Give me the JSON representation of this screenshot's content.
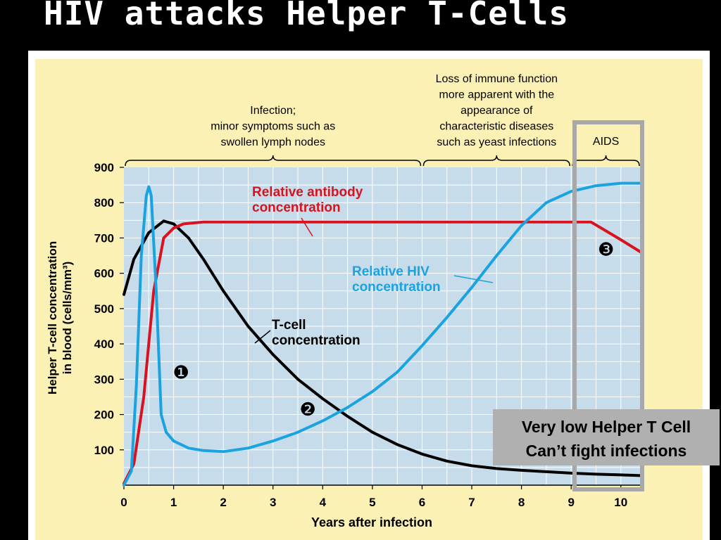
{
  "slide": {
    "title": "HIV attacks Helper T-Cells"
  },
  "callout": {
    "line1": "Very low Helper T Cell",
    "line2": "Can’t fight infections"
  },
  "chart_data": {
    "type": "line",
    "xlabel": "Years after infection",
    "ylabel_line1": "Helper T-cell concentration",
    "ylabel_line2": "in blood (cells/mm³)",
    "xlim": [
      0,
      10.4
    ],
    "ylim": [
      0,
      900
    ],
    "x_ticks": [
      0,
      1,
      2,
      3,
      4,
      5,
      6,
      7,
      8,
      9,
      10
    ],
    "y_ticks": [
      100,
      200,
      300,
      400,
      500,
      600,
      700,
      800,
      900
    ],
    "grid": true,
    "stages": [
      {
        "label_lines": [
          "Infection;",
          "minor symptoms such as",
          "swollen lymph nodes"
        ],
        "x_range": [
          0,
          6
        ]
      },
      {
        "label_lines": [
          "Loss of immune function",
          "more apparent with the",
          "appearance of",
          "characteristic diseases",
          "such as yeast infections"
        ],
        "x_range": [
          6,
          9
        ]
      },
      {
        "label_lines": [
          "AIDS"
        ],
        "x_range": [
          9,
          10.4
        ]
      }
    ],
    "series": [
      {
        "name": "T-cell concentration",
        "label_lines": [
          "T-cell",
          "concentration"
        ],
        "color": "#000000",
        "points": [
          [
            0,
            540
          ],
          [
            0.2,
            640
          ],
          [
            0.5,
            715
          ],
          [
            0.8,
            748
          ],
          [
            1.0,
            740
          ],
          [
            1.3,
            700
          ],
          [
            1.6,
            640
          ],
          [
            2.0,
            550
          ],
          [
            2.5,
            450
          ],
          [
            3.0,
            370
          ],
          [
            3.5,
            300
          ],
          [
            4.0,
            245
          ],
          [
            4.5,
            195
          ],
          [
            5.0,
            150
          ],
          [
            5.5,
            115
          ],
          [
            6.0,
            88
          ],
          [
            6.5,
            68
          ],
          [
            7.0,
            55
          ],
          [
            7.5,
            47
          ],
          [
            8.0,
            42
          ],
          [
            8.5,
            38
          ],
          [
            9.0,
            34
          ],
          [
            9.5,
            31
          ],
          [
            10.0,
            29
          ],
          [
            10.4,
            27
          ]
        ]
      },
      {
        "name": "Relative antibody concentration",
        "label_lines": [
          "Relative antibody",
          "concentration"
        ],
        "color": "#d9121f",
        "points": [
          [
            0,
            5
          ],
          [
            0.2,
            60
          ],
          [
            0.4,
            250
          ],
          [
            0.6,
            550
          ],
          [
            0.8,
            700
          ],
          [
            1.0,
            728
          ],
          [
            1.2,
            740
          ],
          [
            1.6,
            745
          ],
          [
            3.0,
            745
          ],
          [
            6.0,
            745
          ],
          [
            8.0,
            745
          ],
          [
            9.0,
            745
          ],
          [
            9.4,
            745
          ],
          [
            9.7,
            720
          ],
          [
            10.0,
            695
          ],
          [
            10.4,
            660
          ]
        ]
      },
      {
        "name": "Relative HIV concentration",
        "label_lines": [
          "Relative HIV",
          "concentration"
        ],
        "color": "#1aa3e0",
        "points": [
          [
            0,
            0
          ],
          [
            0.15,
            40
          ],
          [
            0.25,
            280
          ],
          [
            0.35,
            650
          ],
          [
            0.45,
            820
          ],
          [
            0.5,
            845
          ],
          [
            0.55,
            820
          ],
          [
            0.65,
            550
          ],
          [
            0.75,
            200
          ],
          [
            0.85,
            150
          ],
          [
            1.0,
            125
          ],
          [
            1.3,
            105
          ],
          [
            1.6,
            98
          ],
          [
            2.0,
            95
          ],
          [
            2.5,
            105
          ],
          [
            3.0,
            125
          ],
          [
            3.5,
            150
          ],
          [
            4.0,
            182
          ],
          [
            4.5,
            220
          ],
          [
            5.0,
            265
          ],
          [
            5.5,
            320
          ],
          [
            6.0,
            395
          ],
          [
            6.5,
            475
          ],
          [
            7.0,
            560
          ],
          [
            7.5,
            650
          ],
          [
            8.0,
            735
          ],
          [
            8.5,
            800
          ],
          [
            9.0,
            832
          ],
          [
            9.5,
            848
          ],
          [
            10.0,
            855
          ],
          [
            10.4,
            855
          ]
        ]
      }
    ],
    "annotations": [
      {
        "text": "❶",
        "x": 1.15,
        "y": 320
      },
      {
        "text": "❷",
        "x": 3.7,
        "y": 215
      },
      {
        "text": "❸",
        "x": 9.7,
        "y": 668
      }
    ]
  }
}
